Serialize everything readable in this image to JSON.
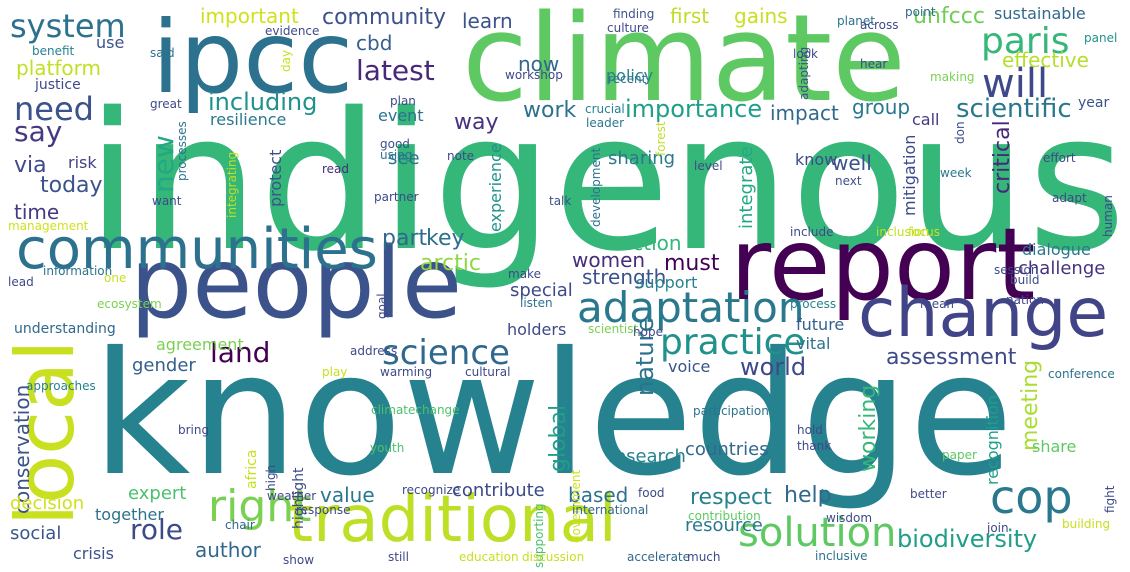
{
  "words": [
    {
      "text": "indigenous",
      "color": "#35b779"
    },
    {
      "text": "knowledge",
      "color": "#26828e"
    },
    {
      "text": "climate",
      "color": "#5ec962"
    },
    {
      "text": "ipcc",
      "color": "#2c728e"
    },
    {
      "text": "people",
      "color": "#3b528b"
    },
    {
      "text": "report",
      "color": "#440154"
    },
    {
      "text": "change",
      "color": "#414487"
    },
    {
      "text": "traditional",
      "color": "#bddf26"
    },
    {
      "text": "local",
      "color": "#c8e020"
    },
    {
      "text": "communities",
      "color": "#2c728e"
    },
    {
      "text": "adaptation",
      "color": "#2a788e"
    },
    {
      "text": "cop",
      "color": "#2a788e"
    },
    {
      "text": "solution",
      "color": "#5ec962"
    },
    {
      "text": "right",
      "color": "#7ad151"
    },
    {
      "text": "science",
      "color": "#31688e"
    },
    {
      "text": "practice",
      "color": "#21918c"
    },
    {
      "text": "paris",
      "color": "#35b779"
    },
    {
      "text": "will",
      "color": "#3e4989"
    },
    {
      "text": "need",
      "color": "#3b528b"
    },
    {
      "text": "system",
      "color": "#2c728e"
    },
    {
      "text": "latest",
      "color": "#482878"
    },
    {
      "text": "land",
      "color": "#440154"
    },
    {
      "text": "role",
      "color": "#3e4a89"
    },
    {
      "text": "new",
      "color": "#22a884"
    },
    {
      "text": "including",
      "color": "#21918c"
    },
    {
      "text": "importance",
      "color": "#1f9e89"
    },
    {
      "text": "scientific",
      "color": "#2a788e"
    },
    {
      "text": "biodiversity",
      "color": "#1f9e89"
    },
    {
      "text": "assessment",
      "color": "#3e4989"
    },
    {
      "text": "platform",
      "color": "#c2df23"
    },
    {
      "text": "effective",
      "color": "#b5de2b"
    },
    {
      "text": "community",
      "color": "#3b528b"
    },
    {
      "text": "important",
      "color": "#d0e11c"
    },
    {
      "text": "first",
      "color": "#bddf26"
    },
    {
      "text": "gains",
      "color": "#c8e020"
    },
    {
      "text": "unfccc",
      "color": "#6ece58"
    },
    {
      "text": "sustainable",
      "color": "#31688e"
    },
    {
      "text": "learn",
      "color": "#3b528b"
    },
    {
      "text": "cbd",
      "color": "#355f8d"
    },
    {
      "text": "now",
      "color": "#31688e"
    },
    {
      "text": "say",
      "color": "#443983"
    },
    {
      "text": "today",
      "color": "#3b528b"
    },
    {
      "text": "via",
      "color": "#3e4a89"
    },
    {
      "text": "time",
      "color": "#443983"
    },
    {
      "text": "work",
      "color": "#2c728e"
    },
    {
      "text": "impact",
      "color": "#31688e"
    },
    {
      "text": "group",
      "color": "#2a788e"
    },
    {
      "text": "way",
      "color": "#46327e"
    },
    {
      "text": "women",
      "color": "#472d7b"
    },
    {
      "text": "must",
      "color": "#440154"
    },
    {
      "text": "action",
      "color": "#35b779"
    },
    {
      "text": "strength",
      "color": "#3b528b"
    },
    {
      "text": "arctic",
      "color": "#8fd744"
    },
    {
      "text": "part",
      "color": "#31688e"
    },
    {
      "text": "key",
      "color": "#2c728e"
    },
    {
      "text": "critical",
      "color": "#482878"
    },
    {
      "text": "help",
      "color": "#31688e"
    },
    {
      "text": "respect",
      "color": "#26828e"
    },
    {
      "text": "based",
      "color": "#2c728e"
    },
    {
      "text": "author",
      "color": "#31688e"
    },
    {
      "text": "value",
      "color": "#2a788e"
    },
    {
      "text": "world",
      "color": "#3e4989"
    },
    {
      "text": "nature",
      "color": "#2c728e"
    },
    {
      "text": "global",
      "color": "#1f9e89"
    },
    {
      "text": "working",
      "color": "#35b779"
    },
    {
      "text": "meeting",
      "color": "#aadc32"
    },
    {
      "text": "conservation",
      "color": "#3b528b"
    },
    {
      "text": "recognition",
      "color": "#1f9e89"
    },
    {
      "text": "agreement",
      "color": "#7ad151"
    },
    {
      "text": "gender",
      "color": "#355f8d"
    },
    {
      "text": "challenge",
      "color": "#46327e"
    },
    {
      "text": "dialogue",
      "color": "#2a788e"
    },
    {
      "text": "share",
      "color": "#5ec962"
    },
    {
      "text": "expert",
      "color": "#4ac16d"
    },
    {
      "text": "decision",
      "color": "#d0e11c"
    },
    {
      "text": "together",
      "color": "#2c728e"
    },
    {
      "text": "social",
      "color": "#39568c"
    },
    {
      "text": "crisis",
      "color": "#3b528b"
    },
    {
      "text": "contribute",
      "color": "#3e4989"
    },
    {
      "text": "resource",
      "color": "#2a788e"
    },
    {
      "text": "countries",
      "color": "#31688e"
    },
    {
      "text": "research",
      "color": "#26828e"
    },
    {
      "text": "voice",
      "color": "#3b528b"
    },
    {
      "text": "special",
      "color": "#3e4989"
    },
    {
      "text": "future",
      "color": "#355f8d"
    },
    {
      "text": "vital",
      "color": "#2c728e"
    },
    {
      "text": "holders",
      "color": "#3e4a89"
    },
    {
      "text": "support",
      "color": "#26828e"
    },
    {
      "text": "see",
      "color": "#2c728e"
    },
    {
      "text": "sharing",
      "color": "#2a788e"
    },
    {
      "text": "integrate",
      "color": "#22a884"
    },
    {
      "text": "well",
      "color": "#3b528b"
    },
    {
      "text": "know",
      "color": "#3e4a89"
    },
    {
      "text": "mitigation",
      "color": "#3e4989"
    },
    {
      "text": "call",
      "color": "#443983"
    },
    {
      "text": "event",
      "color": "#2c728e"
    },
    {
      "text": "resilience",
      "color": "#2a788e"
    },
    {
      "text": "experience",
      "color": "#21918c"
    },
    {
      "text": "protect",
      "color": "#3b528b"
    },
    {
      "text": "risk",
      "color": "#414487"
    },
    {
      "text": "use",
      "color": "#3b528b"
    },
    {
      "text": "benefit",
      "color": "#26828e"
    },
    {
      "text": "said",
      "color": "#2c728e"
    },
    {
      "text": "justice",
      "color": "#3e4989"
    },
    {
      "text": "evidence",
      "color": "#3e4989"
    },
    {
      "text": "day",
      "color": "#c8e020"
    },
    {
      "text": "policy",
      "color": "#26828e"
    },
    {
      "text": "workshop",
      "color": "#3e4989"
    },
    {
      "text": "recent",
      "color": "#2c728e"
    },
    {
      "text": "crucial",
      "color": "#26828e"
    },
    {
      "text": "leader",
      "color": "#2a788e"
    },
    {
      "text": "finding",
      "color": "#3b528b"
    },
    {
      "text": "culture",
      "color": "#3e4a89"
    },
    {
      "text": "planet",
      "color": "#2c728e"
    },
    {
      "text": "across",
      "color": "#3e4989"
    },
    {
      "text": "point",
      "color": "#31688e"
    },
    {
      "text": "panel",
      "color": "#21918c"
    },
    {
      "text": "look",
      "color": "#3e4989"
    },
    {
      "text": "adapting",
      "color": "#3b528b"
    },
    {
      "text": "forest",
      "color": "#bddf26"
    },
    {
      "text": "hear",
      "color": "#3e4989"
    },
    {
      "text": "making",
      "color": "#7ad151"
    },
    {
      "text": "year",
      "color": "#3b528b"
    },
    {
      "text": "great",
      "color": "#3e4989"
    },
    {
      "text": "plan",
      "color": "#3e4989"
    },
    {
      "text": "good",
      "color": "#3b528b"
    },
    {
      "text": "using",
      "color": "#2c728e"
    },
    {
      "text": "note",
      "color": "#3e4989"
    },
    {
      "text": "read",
      "color": "#472d7b"
    },
    {
      "text": "processes",
      "color": "#2c728e"
    },
    {
      "text": "want",
      "color": "#3e4989"
    },
    {
      "text": "integrating",
      "color": "#c2df23"
    },
    {
      "text": "management",
      "color": "#d0e11c"
    },
    {
      "text": "partner",
      "color": "#3e4989"
    },
    {
      "text": "talk",
      "color": "#3b528b"
    },
    {
      "text": "development",
      "color": "#2c728e"
    },
    {
      "text": "level",
      "color": "#3e4989"
    },
    {
      "text": "don",
      "color": "#3e4a89"
    },
    {
      "text": "effort",
      "color": "#3e4989"
    },
    {
      "text": "adapt",
      "color": "#3e4989"
    },
    {
      "text": "next",
      "color": "#3b528b"
    },
    {
      "text": "week",
      "color": "#2a788e"
    },
    {
      "text": "human",
      "color": "#3e4989"
    },
    {
      "text": "include",
      "color": "#3e4989"
    },
    {
      "text": "inclusion",
      "color": "#c2df23"
    },
    {
      "text": "focus",
      "color": "#c8e020"
    },
    {
      "text": "information",
      "color": "#2c728e"
    },
    {
      "text": "one",
      "color": "#c8e020"
    },
    {
      "text": "lead",
      "color": "#3e4989"
    },
    {
      "text": "ecosystem",
      "color": "#7ad151"
    },
    {
      "text": "make",
      "color": "#3e4989"
    },
    {
      "text": "listen",
      "color": "#2c728e"
    },
    {
      "text": "goal",
      "color": "#3e4989"
    },
    {
      "text": "process",
      "color": "#26828e"
    },
    {
      "text": "session",
      "color": "#3e4989"
    },
    {
      "text": "build",
      "color": "#3e4989"
    },
    {
      "text": "mean",
      "color": "#3e4989"
    },
    {
      "text": "nation",
      "color": "#3e4989"
    },
    {
      "text": "understanding",
      "color": "#31688e"
    },
    {
      "text": "scientist",
      "color": "#7ad151"
    },
    {
      "text": "hope",
      "color": "#3e4989"
    },
    {
      "text": "address",
      "color": "#3e4989"
    },
    {
      "text": "play",
      "color": "#c8e020"
    },
    {
      "text": "warming",
      "color": "#3e4989"
    },
    {
      "text": "cultural",
      "color": "#3e4989"
    },
    {
      "text": "approaches",
      "color": "#26828e"
    },
    {
      "text": "conference",
      "color": "#2c728e"
    },
    {
      "text": "africa",
      "color": "#c8e020"
    },
    {
      "text": "highlight",
      "color": "#3e4989"
    },
    {
      "text": "climatechange",
      "color": "#4ac16d"
    },
    {
      "text": "bring",
      "color": "#3e4989"
    },
    {
      "text": "youth",
      "color": "#4ac16d"
    },
    {
      "text": "high",
      "color": "#3e4989"
    },
    {
      "text": "government",
      "color": "#d0e11c"
    },
    {
      "text": "supporting",
      "color": "#4ac16d"
    },
    {
      "text": "participation",
      "color": "#2c728e"
    },
    {
      "text": "hold",
      "color": "#3e4989"
    },
    {
      "text": "thank",
      "color": "#3e4989"
    },
    {
      "text": "paper",
      "color": "#5ec962"
    },
    {
      "text": "fight",
      "color": "#3e4989"
    },
    {
      "text": "recognize",
      "color": "#3e4989"
    },
    {
      "text": "food",
      "color": "#3e4989"
    },
    {
      "text": "weather",
      "color": "#3e4989"
    },
    {
      "text": "better",
      "color": "#3e4989"
    },
    {
      "text": "chair",
      "color": "#31688e"
    },
    {
      "text": "response",
      "color": "#3e4989"
    },
    {
      "text": "international",
      "color": "#31688e"
    },
    {
      "text": "contribution",
      "color": "#5ec962"
    },
    {
      "text": "wisdom",
      "color": "#3e4989"
    },
    {
      "text": "join",
      "color": "#3e4989"
    },
    {
      "text": "building",
      "color": "#c8e020"
    },
    {
      "text": "show",
      "color": "#3e4989"
    },
    {
      "text": "still",
      "color": "#3e4989"
    },
    {
      "text": "education",
      "color": "#c8e020"
    },
    {
      "text": "discussion",
      "color": "#c8e020"
    },
    {
      "text": "accelerate",
      "color": "#31688e"
    },
    {
      "text": "much",
      "color": "#3e4989"
    },
    {
      "text": "inclusive",
      "color": "#2c728e"
    },
    {
      "text": "essential",
      "color": "#2a788e"
    }
  ]
}
